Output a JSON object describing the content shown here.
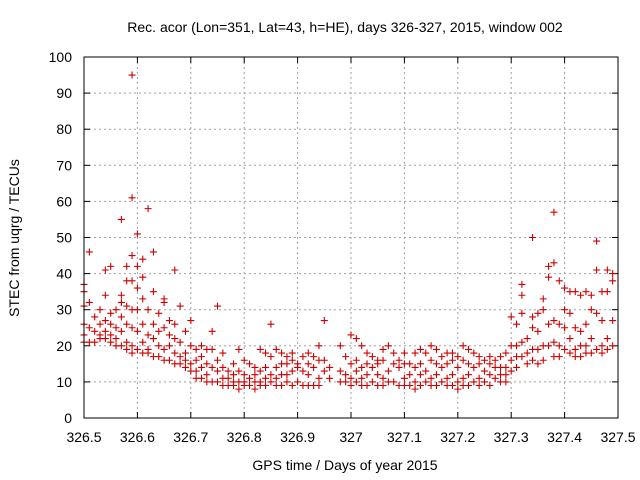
{
  "chart_data": {
    "type": "scatter",
    "title": "Rec. acor (Lon=351, Lat=43, h=HE), days 326-327, 2015, window 002",
    "xlabel": "GPS time / Days of year 2015",
    "ylabel": "STEC from uqrg / TECUs",
    "xlim": [
      326.5,
      327.5
    ],
    "ylim": [
      0,
      100
    ],
    "xticks": [
      "326.5",
      "326.6",
      "326.7",
      "326.8",
      "326.9",
      "327",
      "327.1",
      "327.2",
      "327.3",
      "327.4",
      "327.5"
    ],
    "yticks": [
      "0",
      "10",
      "20",
      "30",
      "40",
      "50",
      "60",
      "70",
      "80",
      "90",
      "100"
    ],
    "grid": true,
    "marker": "plus",
    "color": "#cc0000",
    "points": [
      [
        326.5,
        37
      ],
      [
        326.5,
        35
      ],
      [
        326.5,
        31
      ],
      [
        326.5,
        26
      ],
      [
        326.5,
        23
      ],
      [
        326.5,
        21
      ],
      [
        326.51,
        46
      ],
      [
        326.51,
        32
      ],
      [
        326.51,
        25
      ],
      [
        326.51,
        21
      ],
      [
        326.52,
        28
      ],
      [
        326.52,
        24
      ],
      [
        326.52,
        21
      ],
      [
        326.53,
        30
      ],
      [
        326.53,
        26
      ],
      [
        326.53,
        23
      ],
      [
        326.53,
        22
      ],
      [
        326.54,
        41
      ],
      [
        326.54,
        34
      ],
      [
        326.54,
        27
      ],
      [
        326.54,
        24
      ],
      [
        326.54,
        22
      ],
      [
        326.55,
        42
      ],
      [
        326.55,
        29
      ],
      [
        326.55,
        26
      ],
      [
        326.55,
        23
      ],
      [
        326.55,
        21
      ],
      [
        326.56,
        30
      ],
      [
        326.56,
        25
      ],
      [
        326.56,
        22
      ],
      [
        326.56,
        20
      ],
      [
        326.57,
        55
      ],
      [
        326.57,
        34
      ],
      [
        326.57,
        32
      ],
      [
        326.57,
        28
      ],
      [
        326.57,
        24
      ],
      [
        326.57,
        20
      ],
      [
        326.58,
        42
      ],
      [
        326.58,
        38
      ],
      [
        326.58,
        31
      ],
      [
        326.58,
        26
      ],
      [
        326.58,
        21
      ],
      [
        326.58,
        19
      ],
      [
        326.59,
        95
      ],
      [
        326.59,
        61
      ],
      [
        326.59,
        45
      ],
      [
        326.59,
        38
      ],
      [
        326.59,
        30
      ],
      [
        326.59,
        25
      ],
      [
        326.59,
        20
      ],
      [
        326.59,
        18
      ],
      [
        326.6,
        51
      ],
      [
        326.6,
        42
      ],
      [
        326.6,
        36
      ],
      [
        326.6,
        30
      ],
      [
        326.6,
        24
      ],
      [
        326.6,
        19
      ],
      [
        326.61,
        44
      ],
      [
        326.61,
        39
      ],
      [
        326.61,
        33
      ],
      [
        326.61,
        26
      ],
      [
        326.61,
        21
      ],
      [
        326.61,
        18
      ],
      [
        326.62,
        58
      ],
      [
        326.62,
        30
      ],
      [
        326.62,
        23
      ],
      [
        326.62,
        19
      ],
      [
        326.62,
        18
      ],
      [
        326.63,
        46
      ],
      [
        326.63,
        35
      ],
      [
        326.63,
        26
      ],
      [
        326.63,
        22
      ],
      [
        326.63,
        17
      ],
      [
        326.64,
        29
      ],
      [
        326.64,
        24
      ],
      [
        326.64,
        20
      ],
      [
        326.64,
        17
      ],
      [
        326.65,
        33
      ],
      [
        326.65,
        32
      ],
      [
        326.65,
        25
      ],
      [
        326.65,
        19
      ],
      [
        326.65,
        16
      ],
      [
        326.66,
        27
      ],
      [
        326.66,
        23
      ],
      [
        326.66,
        20
      ],
      [
        326.66,
        16
      ],
      [
        326.67,
        41
      ],
      [
        326.67,
        26
      ],
      [
        326.67,
        22
      ],
      [
        326.67,
        18
      ],
      [
        326.67,
        15
      ],
      [
        326.68,
        31
      ],
      [
        326.68,
        21
      ],
      [
        326.68,
        17
      ],
      [
        326.68,
        15
      ],
      [
        326.69,
        24
      ],
      [
        326.69,
        18
      ],
      [
        326.69,
        16
      ],
      [
        326.69,
        14
      ],
      [
        326.7,
        27
      ],
      [
        326.7,
        20
      ],
      [
        326.7,
        15
      ],
      [
        326.7,
        13
      ],
      [
        326.71,
        19
      ],
      [
        326.71,
        16
      ],
      [
        326.71,
        13
      ],
      [
        326.71,
        11
      ],
      [
        326.72,
        20
      ],
      [
        326.72,
        17
      ],
      [
        326.72,
        14
      ],
      [
        326.72,
        11
      ],
      [
        326.73,
        19
      ],
      [
        326.73,
        15
      ],
      [
        326.73,
        12
      ],
      [
        326.73,
        10
      ],
      [
        326.74,
        24
      ],
      [
        326.74,
        19
      ],
      [
        326.74,
        14
      ],
      [
        326.74,
        10
      ],
      [
        326.75,
        31
      ],
      [
        326.75,
        16
      ],
      [
        326.75,
        13
      ],
      [
        326.75,
        10
      ],
      [
        326.76,
        18
      ],
      [
        326.76,
        14
      ],
      [
        326.76,
        11
      ],
      [
        326.76,
        9
      ],
      [
        326.77,
        13
      ],
      [
        326.77,
        11
      ],
      [
        326.77,
        9
      ],
      [
        326.78,
        15
      ],
      [
        326.78,
        12
      ],
      [
        326.78,
        10
      ],
      [
        326.78,
        9
      ],
      [
        326.79,
        19
      ],
      [
        326.79,
        13
      ],
      [
        326.79,
        10
      ],
      [
        326.79,
        8
      ],
      [
        326.8,
        16
      ],
      [
        326.8,
        12
      ],
      [
        326.8,
        10
      ],
      [
        326.8,
        9
      ],
      [
        326.81,
        15
      ],
      [
        326.81,
        11
      ],
      [
        326.81,
        9
      ],
      [
        326.82,
        14
      ],
      [
        326.82,
        12
      ],
      [
        326.82,
        10
      ],
      [
        326.82,
        8
      ],
      [
        326.83,
        19
      ],
      [
        326.83,
        13
      ],
      [
        326.83,
        10
      ],
      [
        326.83,
        9
      ],
      [
        326.84,
        18
      ],
      [
        326.84,
        14
      ],
      [
        326.84,
        11
      ],
      [
        326.84,
        9
      ],
      [
        326.85,
        26
      ],
      [
        326.85,
        17
      ],
      [
        326.85,
        12
      ],
      [
        326.85,
        10
      ],
      [
        326.86,
        19
      ],
      [
        326.86,
        14
      ],
      [
        326.86,
        11
      ],
      [
        326.86,
        9
      ],
      [
        326.87,
        18
      ],
      [
        326.87,
        15
      ],
      [
        326.87,
        12
      ],
      [
        326.87,
        9
      ],
      [
        326.88,
        17
      ],
      [
        326.88,
        15
      ],
      [
        326.88,
        12
      ],
      [
        326.88,
        10
      ],
      [
        326.89,
        18
      ],
      [
        326.89,
        16
      ],
      [
        326.89,
        13
      ],
      [
        326.89,
        9
      ],
      [
        326.9,
        15
      ],
      [
        326.9,
        14
      ],
      [
        326.9,
        10
      ],
      [
        326.91,
        17
      ],
      [
        326.91,
        13
      ],
      [
        326.91,
        9
      ],
      [
        326.92,
        18
      ],
      [
        326.92,
        15
      ],
      [
        326.92,
        12
      ],
      [
        326.92,
        9
      ],
      [
        326.93,
        17
      ],
      [
        326.93,
        14
      ],
      [
        326.93,
        9
      ],
      [
        326.94,
        20
      ],
      [
        326.94,
        16
      ],
      [
        326.94,
        11
      ],
      [
        326.94,
        9
      ],
      [
        326.95,
        27
      ],
      [
        326.95,
        16
      ],
      [
        326.95,
        13
      ],
      [
        326.96,
        14
      ],
      [
        326.96,
        11
      ],
      [
        326.98,
        20
      ],
      [
        326.98,
        13
      ],
      [
        326.98,
        10
      ],
      [
        326.99,
        17
      ],
      [
        326.99,
        12
      ],
      [
        326.99,
        10
      ],
      [
        327.0,
        23
      ],
      [
        327.0,
        15
      ],
      [
        327.0,
        11
      ],
      [
        327.0,
        9
      ],
      [
        327.01,
        22
      ],
      [
        327.01,
        16
      ],
      [
        327.01,
        13
      ],
      [
        327.01,
        10
      ],
      [
        327.02,
        20
      ],
      [
        327.02,
        14
      ],
      [
        327.02,
        11
      ],
      [
        327.02,
        9
      ],
      [
        327.03,
        18
      ],
      [
        327.03,
        15
      ],
      [
        327.03,
        12
      ],
      [
        327.03,
        9
      ],
      [
        327.04,
        17
      ],
      [
        327.04,
        14
      ],
      [
        327.04,
        10
      ],
      [
        327.05,
        16
      ],
      [
        327.05,
        15
      ],
      [
        327.05,
        12
      ],
      [
        327.05,
        9
      ],
      [
        327.06,
        19
      ],
      [
        327.06,
        16
      ],
      [
        327.06,
        11
      ],
      [
        327.06,
        9
      ],
      [
        327.07,
        20
      ],
      [
        327.07,
        13
      ],
      [
        327.07,
        10
      ],
      [
        327.08,
        18
      ],
      [
        327.08,
        15
      ],
      [
        327.08,
        10
      ],
      [
        327.09,
        16
      ],
      [
        327.09,
        14
      ],
      [
        327.09,
        9
      ],
      [
        327.1,
        18
      ],
      [
        327.1,
        15
      ],
      [
        327.1,
        11
      ],
      [
        327.1,
        9
      ],
      [
        327.11,
        15
      ],
      [
        327.11,
        12
      ],
      [
        327.11,
        9
      ],
      [
        327.12,
        18
      ],
      [
        327.12,
        14
      ],
      [
        327.12,
        10
      ],
      [
        327.12,
        8
      ],
      [
        327.13,
        19
      ],
      [
        327.13,
        15
      ],
      [
        327.13,
        12
      ],
      [
        327.13,
        9
      ],
      [
        327.14,
        18
      ],
      [
        327.14,
        13
      ],
      [
        327.14,
        10
      ],
      [
        327.15,
        20
      ],
      [
        327.15,
        16
      ],
      [
        327.15,
        11
      ],
      [
        327.15,
        9
      ],
      [
        327.16,
        19
      ],
      [
        327.16,
        15
      ],
      [
        327.16,
        12
      ],
      [
        327.16,
        9
      ],
      [
        327.17,
        17
      ],
      [
        327.17,
        14
      ],
      [
        327.17,
        10
      ],
      [
        327.18,
        18
      ],
      [
        327.18,
        15
      ],
      [
        327.18,
        11
      ],
      [
        327.18,
        9
      ],
      [
        327.19,
        18
      ],
      [
        327.19,
        16
      ],
      [
        327.19,
        12
      ],
      [
        327.19,
        9
      ],
      [
        327.2,
        17
      ],
      [
        327.2,
        14
      ],
      [
        327.2,
        10
      ],
      [
        327.2,
        8
      ],
      [
        327.21,
        20
      ],
      [
        327.21,
        16
      ],
      [
        327.21,
        11
      ],
      [
        327.21,
        9
      ],
      [
        327.22,
        19
      ],
      [
        327.22,
        15
      ],
      [
        327.22,
        12
      ],
      [
        327.22,
        9
      ],
      [
        327.23,
        18
      ],
      [
        327.23,
        14
      ],
      [
        327.23,
        10
      ],
      [
        327.24,
        17
      ],
      [
        327.24,
        15
      ],
      [
        327.24,
        11
      ],
      [
        327.24,
        9
      ],
      [
        327.25,
        16
      ],
      [
        327.25,
        13
      ],
      [
        327.25,
        10
      ],
      [
        327.26,
        17
      ],
      [
        327.26,
        15
      ],
      [
        327.26,
        12
      ],
      [
        327.26,
        9
      ],
      [
        327.27,
        16
      ],
      [
        327.27,
        14
      ],
      [
        327.27,
        11
      ],
      [
        327.28,
        17
      ],
      [
        327.28,
        14
      ],
      [
        327.28,
        12
      ],
      [
        327.28,
        10
      ],
      [
        327.29,
        18
      ],
      [
        327.29,
        14
      ],
      [
        327.29,
        12
      ],
      [
        327.29,
        10
      ],
      [
        327.3,
        28
      ],
      [
        327.3,
        20
      ],
      [
        327.3,
        16
      ],
      [
        327.3,
        13
      ],
      [
        327.31,
        26
      ],
      [
        327.31,
        20
      ],
      [
        327.31,
        17
      ],
      [
        327.31,
        14
      ],
      [
        327.32,
        37
      ],
      [
        327.32,
        34
      ],
      [
        327.32,
        29
      ],
      [
        327.32,
        21
      ],
      [
        327.32,
        17
      ],
      [
        327.33,
        22
      ],
      [
        327.33,
        18
      ],
      [
        327.33,
        15
      ],
      [
        327.34,
        50
      ],
      [
        327.34,
        28
      ],
      [
        327.34,
        25
      ],
      [
        327.34,
        19
      ],
      [
        327.34,
        16
      ],
      [
        327.35,
        29
      ],
      [
        327.35,
        24
      ],
      [
        327.35,
        19
      ],
      [
        327.35,
        15
      ],
      [
        327.36,
        33
      ],
      [
        327.36,
        30
      ],
      [
        327.36,
        20
      ],
      [
        327.36,
        16
      ],
      [
        327.37,
        42
      ],
      [
        327.37,
        39
      ],
      [
        327.37,
        26
      ],
      [
        327.37,
        20
      ],
      [
        327.38,
        57
      ],
      [
        327.38,
        43
      ],
      [
        327.38,
        27
      ],
      [
        327.38,
        21
      ],
      [
        327.38,
        17
      ],
      [
        327.39,
        38
      ],
      [
        327.39,
        26
      ],
      [
        327.39,
        20
      ],
      [
        327.39,
        17
      ],
      [
        327.4,
        36
      ],
      [
        327.4,
        30
      ],
      [
        327.4,
        25
      ],
      [
        327.4,
        19
      ],
      [
        327.41,
        35
      ],
      [
        327.41,
        29
      ],
      [
        327.41,
        22
      ],
      [
        327.41,
        18
      ],
      [
        327.42,
        35
      ],
      [
        327.42,
        25
      ],
      [
        327.42,
        19
      ],
      [
        327.42,
        17
      ],
      [
        327.43,
        34
      ],
      [
        327.43,
        24
      ],
      [
        327.43,
        20
      ],
      [
        327.43,
        17
      ],
      [
        327.44,
        35
      ],
      [
        327.44,
        26
      ],
      [
        327.44,
        20
      ],
      [
        327.44,
        18
      ],
      [
        327.45,
        34
      ],
      [
        327.45,
        30
      ],
      [
        327.45,
        22
      ],
      [
        327.45,
        18
      ],
      [
        327.46,
        49
      ],
      [
        327.46,
        41
      ],
      [
        327.46,
        29
      ],
      [
        327.46,
        19
      ],
      [
        327.47,
        35
      ],
      [
        327.47,
        27
      ],
      [
        327.47,
        20
      ],
      [
        327.47,
        18
      ],
      [
        327.48,
        41
      ],
      [
        327.48,
        35
      ],
      [
        327.48,
        22
      ],
      [
        327.48,
        19
      ],
      [
        327.49,
        40
      ],
      [
        327.49,
        38
      ],
      [
        327.49,
        27
      ],
      [
        327.49,
        20
      ]
    ]
  }
}
